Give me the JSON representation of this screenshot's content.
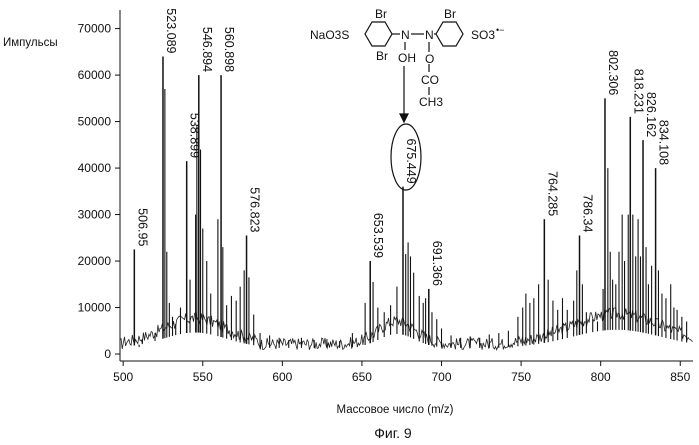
{
  "chart_data": {
    "type": "line",
    "title": "",
    "xlabel": "Массовое число (m/z)",
    "ylabel": "Импульсы",
    "caption": "Фиг. 9",
    "xlim": [
      498,
      858
    ],
    "ylim": [
      -1500,
      74000
    ],
    "x_ticks": [
      500,
      550,
      600,
      650,
      700,
      750,
      800,
      850
    ],
    "y_ticks": [
      0,
      10000,
      20000,
      30000,
      40000,
      50000,
      60000,
      70000
    ],
    "grid": false,
    "peaks": [
      {
        "x": 507.0,
        "y": 22500,
        "label": "506.95"
      },
      {
        "x": 525.0,
        "y": 64000,
        "label": "523.089"
      },
      {
        "x": 539.9,
        "y": 41500,
        "label": "538.899"
      },
      {
        "x": 547.5,
        "y": 60000,
        "label": "546.894"
      },
      {
        "x": 561.5,
        "y": 60000,
        "label": "560.898"
      },
      {
        "x": 577.5,
        "y": 25500,
        "label": "576.823"
      },
      {
        "x": 655.2,
        "y": 20000,
        "label": "653.539"
      },
      {
        "x": 675.8,
        "y": 36000,
        "label": "675.449",
        "highlighted": true
      },
      {
        "x": 692.0,
        "y": 14000,
        "label": "691.366"
      },
      {
        "x": 764.6,
        "y": 29000,
        "label": "764.285"
      },
      {
        "x": 786.7,
        "y": 25500,
        "label": "786.34"
      },
      {
        "x": 802.7,
        "y": 55000,
        "label": "802.306"
      },
      {
        "x": 818.6,
        "y": 51000,
        "label": "818.231"
      },
      {
        "x": 826.6,
        "y": 46000,
        "label": "826.162"
      },
      {
        "x": 834.5,
        "y": 40000,
        "label": "834.108"
      }
    ],
    "extra_lines": [
      [
        510,
        1500
      ],
      [
        512,
        3200
      ],
      [
        516,
        2500
      ],
      [
        520,
        4500
      ],
      [
        526.2,
        57000
      ],
      [
        527.4,
        22000
      ],
      [
        529,
        11000
      ],
      [
        531,
        8000
      ],
      [
        533,
        6500
      ],
      [
        536,
        10000
      ],
      [
        542,
        16000
      ],
      [
        545.5,
        30000
      ],
      [
        546.3,
        49000
      ],
      [
        548.6,
        44000
      ],
      [
        550,
        27000
      ],
      [
        552.5,
        20000
      ],
      [
        555,
        13000
      ],
      [
        559.5,
        29000
      ],
      [
        562.6,
        23000
      ],
      [
        565,
        10500
      ],
      [
        568,
        12500
      ],
      [
        571,
        11500
      ],
      [
        573.5,
        14500
      ],
      [
        576,
        18000
      ],
      [
        579,
        16500
      ],
      [
        582,
        8500
      ],
      [
        586,
        4500
      ],
      [
        592,
        4000
      ],
      [
        598,
        3500
      ],
      [
        604,
        3000
      ],
      [
        612,
        3500
      ],
      [
        620,
        3000
      ],
      [
        628,
        3200
      ],
      [
        636,
        2800
      ],
      [
        644,
        4500
      ],
      [
        652,
        11000
      ],
      [
        657,
        15500
      ],
      [
        660,
        10000
      ],
      [
        664,
        9000
      ],
      [
        668,
        10500
      ],
      [
        672,
        14500
      ],
      [
        677.5,
        21500
      ],
      [
        679,
        24000
      ],
      [
        680.5,
        21000
      ],
      [
        682.5,
        17500
      ],
      [
        686,
        12500
      ],
      [
        688.5,
        11000
      ],
      [
        690,
        12000
      ],
      [
        694,
        9000
      ],
      [
        697,
        7500
      ],
      [
        700,
        5500
      ],
      [
        706,
        4000
      ],
      [
        712,
        3500
      ],
      [
        718,
        3800
      ],
      [
        724,
        3500
      ],
      [
        730,
        4200
      ],
      [
        736,
        4500
      ],
      [
        742,
        5000
      ],
      [
        748,
        8000
      ],
      [
        751,
        10000
      ],
      [
        753,
        13000
      ],
      [
        755.5,
        11000
      ],
      [
        758,
        12000
      ],
      [
        761,
        15000
      ],
      [
        767,
        16000
      ],
      [
        770,
        11500
      ],
      [
        773,
        9500
      ],
      [
        776,
        12000
      ],
      [
        779,
        9500
      ],
      [
        783,
        11500
      ],
      [
        785,
        18000
      ],
      [
        788.5,
        15000
      ],
      [
        791,
        9000
      ],
      [
        795,
        7500
      ],
      [
        798,
        7000
      ],
      [
        801.5,
        14000
      ],
      [
        804.5,
        40000
      ],
      [
        806,
        22000
      ],
      [
        807.5,
        16000
      ],
      [
        809.5,
        15000
      ],
      [
        811.5,
        22000
      ],
      [
        813.5,
        30000
      ],
      [
        815,
        20000
      ],
      [
        817.3,
        30000
      ],
      [
        820.2,
        30000
      ],
      [
        822,
        21000
      ],
      [
        823.5,
        29000
      ],
      [
        825,
        21000
      ],
      [
        828.5,
        23000
      ],
      [
        830,
        15000
      ],
      [
        832,
        19000
      ],
      [
        836.3,
        18000
      ],
      [
        838.5,
        13000
      ],
      [
        841,
        12000
      ],
      [
        844,
        15000
      ],
      [
        846,
        10000
      ],
      [
        848,
        9500
      ],
      [
        851,
        8000
      ],
      [
        854,
        7000
      ]
    ]
  },
  "structure": {
    "left_group": "NaO3S",
    "bromine": "Br",
    "nitrogen": "N",
    "hydroxyl": "OH",
    "oxygen": "O",
    "carbonyl": "CO",
    "methyl": "CH3",
    "right_group": "SO3",
    "charge": "•−"
  }
}
